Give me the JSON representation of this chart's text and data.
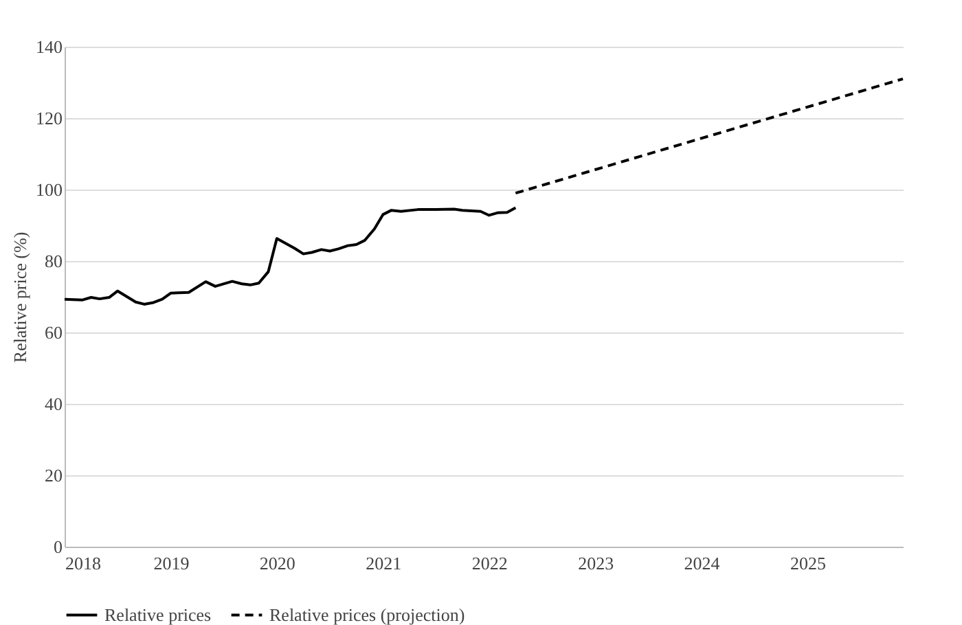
{
  "chart_data": {
    "type": "line",
    "ylabel": "Relative price (%)",
    "xlim": [
      2018,
      2025.9
    ],
    "xticks": [
      2018,
      2019,
      2020,
      2021,
      2022,
      2023,
      2024,
      2025
    ],
    "ylim": [
      0,
      140
    ],
    "yticks": [
      0,
      20,
      40,
      60,
      80,
      100,
      120,
      140
    ],
    "grid": "y",
    "legend": "bottom",
    "series": [
      {
        "name": "Relative prices",
        "color": "#000000",
        "line_style": "solid",
        "x": [
          2018,
          2018.17,
          2018.25,
          2018.33,
          2018.42,
          2018.5,
          2018.67,
          2018.75,
          2018.83,
          2018.92,
          2019,
          2019.17,
          2019.33,
          2019.42,
          2019.58,
          2019.67,
          2019.75,
          2019.83,
          2019.92,
          2020,
          2020.17,
          2020.25,
          2020.33,
          2020.42,
          2020.5,
          2020.58,
          2020.67,
          2020.75,
          2020.83,
          2020.92,
          2021,
          2021.08,
          2021.17,
          2021.33,
          2021.5,
          2021.67,
          2021.75,
          2021.92,
          2022,
          2022.08,
          2022.17,
          2022.25
        ],
        "values": [
          69.3,
          69.1,
          69.8,
          69.4,
          69.8,
          71.6,
          68.5,
          67.9,
          68.3,
          69.3,
          71,
          71.2,
          74.2,
          72.9,
          74.3,
          73.6,
          73.3,
          73.8,
          77,
          86.3,
          83.5,
          82,
          82.4,
          83.2,
          82.8,
          83.4,
          84.3,
          84.6,
          85.8,
          89,
          93,
          94.2,
          93.9,
          94.4,
          94.4,
          94.5,
          94.2,
          93.9,
          92.8,
          93.5,
          93.6,
          94.9
        ]
      },
      {
        "name": "Relative prices (projection)",
        "color": "#000000",
        "line_style": "dashed",
        "x": [
          2022.25,
          2025.9
        ],
        "values": [
          99,
          131
        ]
      }
    ]
  }
}
